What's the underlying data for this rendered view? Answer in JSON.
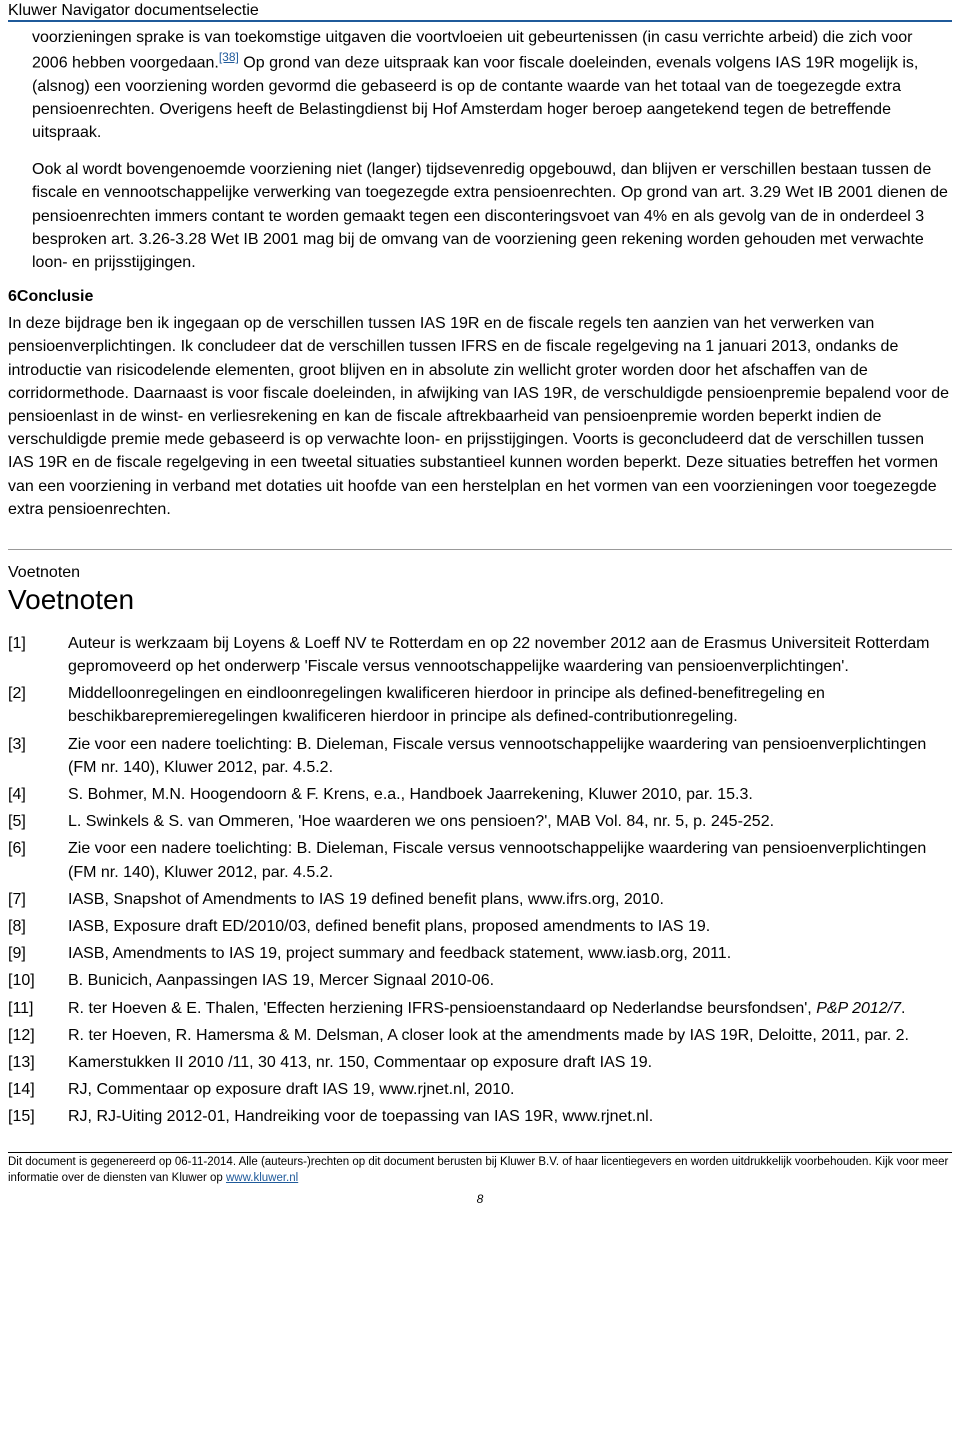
{
  "header": {
    "title": "Kluwer Navigator documentselectie"
  },
  "para1_a": "voorzieningen sprake is van toekomstige uitgaven die voortvloeien uit gebeurtenissen (in casu verrichte arbeid) die zich voor 2006 hebben voorgedaan.",
  "fn38": "[38]",
  "para1_b": " Op grond van deze uitspraak kan voor fiscale doeleinden, evenals volgens IAS 19R mogelijk is, (alsnog) een voorziening worden gevormd die gebaseerd is op de contante waarde van het totaal van de toegezegde extra pensioenrechten. Overigens heeft de Belastingdienst bij Hof Amsterdam hoger beroep aangetekend tegen de betreffende uitspraak.",
  "para2": "Ook al wordt bovengenoemde voorziening niet (langer) tijdsevenredig opgebouwd, dan blijven er verschillen bestaan tussen de fiscale en vennootschappelijke verwerking van toegezegde extra pensioenrechten. Op grond van art. 3.29 Wet IB 2001 dienen de pensioenrechten immers contant te worden gemaakt tegen een disconteringsvoet van 4% en als gevolg van de in onderdeel 3 besproken art. 3.26-3.28 Wet IB 2001 mag bij de omvang van de voorziening geen rekening worden gehouden met verwachte loon- en prijsstijgingen.",
  "section6": {
    "num": "6",
    "title": "Conclusie"
  },
  "para3": "In deze bijdrage ben ik ingegaan op de verschillen tussen IAS 19R en de fiscale regels ten aanzien van het verwerken van pensioenverplichtingen. Ik concludeer dat de verschillen tussen IFRS en de fiscale regelgeving na 1 januari 2013, ondanks de introductie van risicodelende elementen, groot blijven en in absolute zin wellicht groter worden door het afschaffen van de corridormethode. Daarnaast is voor fiscale doeleinden, in afwijking van IAS 19R, de verschuldigde pensioenpremie bepalend voor de pensioenlast in de winst- en verliesrekening en kan de fiscale aftrekbaarheid van pensioenpremie worden beperkt indien de verschuldigde premie mede gebaseerd is op verwachte loon- en prijsstijgingen. Voorts is geconcludeerd dat de verschillen tussen IAS 19R en de fiscale regelgeving in een tweetal situaties substantieel kunnen worden beperkt. Deze situaties betreffen het vormen van een voorziening in verband met dotaties uit hoofde van een herstelplan en het vormen van een voorzieningen voor toegezegde extra pensioenrechten.",
  "voetnoten": {
    "small": "Voetnoten",
    "big": "Voetnoten"
  },
  "footnotes": [
    {
      "n": "[1]",
      "t": "Auteur is werkzaam bij Loyens & Loeff NV te Rotterdam en op 22 november 2012 aan de Erasmus Universiteit Rotterdam gepromoveerd op het onderwerp 'Fiscale versus vennootschappelijke waardering van pensioenverplichtingen'."
    },
    {
      "n": "[2]",
      "t": "Middelloonregelingen en eindloonregelingen kwalificeren hierdoor in principe als defined-benefitregeling en beschikbarepremieregelingen kwalificeren hierdoor in principe als defined-contributionregeling."
    },
    {
      "n": "[3]",
      "t": "Zie voor een nadere toelichting: B. Dieleman, Fiscale versus vennootschappelijke waardering van pensioenverplichtingen (FM nr. 140), Kluwer 2012, par. 4.5.2."
    },
    {
      "n": "[4]",
      "t": "S. Bohmer, M.N. Hoogendoorn & F. Krens, e.a., Handboek Jaarrekening, Kluwer 2010, par. 15.3."
    },
    {
      "n": "[5]",
      "t": "L. Swinkels & S. van Ommeren, 'Hoe waarderen we ons pensioen?', MAB Vol. 84, nr. 5, p. 245-252."
    },
    {
      "n": "[6]",
      "t": "Zie voor een nadere toelichting: B. Dieleman, Fiscale versus vennootschappelijke waardering van pensioenverplichtingen (FM nr. 140), Kluwer 2012, par. 4.5.2."
    },
    {
      "n": "[7]",
      "t": "IASB, Snapshot of Amendments to IAS 19 defined benefit plans, www.ifrs.org, 2010."
    },
    {
      "n": "[8]",
      "t": "IASB, Exposure draft ED/2010/03, defined benefit plans, proposed amendments to IAS 19."
    },
    {
      "n": "[9]",
      "t": "IASB, Amendments to IAS 19, project summary and feedback statement, www.iasb.org, 2011."
    },
    {
      "n": "[10]",
      "t": "B. Bunicich, Aanpassingen IAS 19, Mercer Signaal 2010-06."
    },
    {
      "n": "[11]",
      "t_pre": "R. ter Hoeven & E. Thalen, 'Effecten herziening IFRS-pensioenstandaard op Nederlandse beursfondsen', ",
      "italic": "P&P 2012/7",
      "t_post": "."
    },
    {
      "n": "[12]",
      "t": "R. ter Hoeven, R. Hamersma & M. Delsman, A closer look at the amendments made by IAS 19R, Deloitte, 2011, par. 2."
    },
    {
      "n": "[13]",
      "t": "Kamerstukken II 2010 /11, 30 413, nr. 150, Commentaar op exposure draft IAS 19."
    },
    {
      "n": "[14]",
      "t": "RJ, Commentaar op exposure draft IAS 19, www.rjnet.nl, 2010."
    },
    {
      "n": "[15]",
      "t": "RJ, RJ-Uiting 2012-01, Handreiking voor de toepassing van IAS 19R, www.rjnet.nl."
    }
  ],
  "footer": {
    "text_a": "Dit document is gegenereerd op 06-11-2014. Alle (auteurs-)rechten op dit document berusten bij Kluwer B.V. of haar licentiegevers en worden uitdrukkelijk voorbehouden. Kijk voor meer informatie over de diensten van Kluwer op ",
    "link": "www.kluwer.nl",
    "page": "8"
  }
}
